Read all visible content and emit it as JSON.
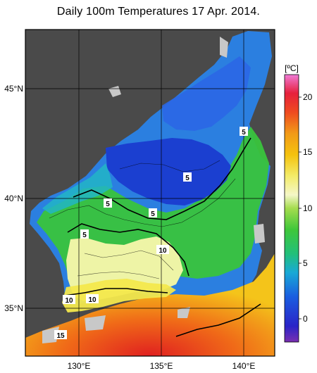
{
  "title": "Daily 100m Temperatures 17 Apr. 2014.",
  "map": {
    "lat_labels": [
      "45°N",
      "40°N",
      "35°N"
    ],
    "lon_labels": [
      "130°E",
      "135°E",
      "140°E"
    ]
  },
  "colorbar": {
    "unit": "[ºC]",
    "ticks": [
      "20",
      "15",
      "10",
      "5",
      "0"
    ]
  },
  "contour_labels": [
    "5",
    "5",
    "5",
    "5",
    "5",
    "5",
    "10",
    "10",
    "10",
    "15"
  ],
  "colors": {
    "land": "#4a4a4a",
    "no_data": "#c8c8c8",
    "frame": "#000000"
  }
}
